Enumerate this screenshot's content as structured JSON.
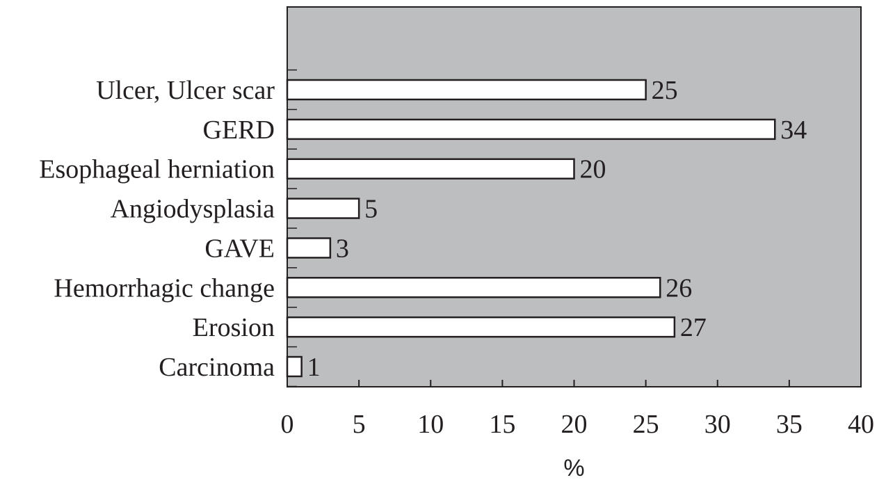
{
  "chart_data": {
    "type": "bar",
    "orientation": "horizontal",
    "categories": [
      "Ulcer, Ulcer scar",
      "GERD",
      "Esophageal herniation",
      "Angiodysplasia",
      "GAVE",
      "Hemorrhagic change",
      "Erosion",
      "Carcinoma"
    ],
    "values": [
      25,
      34,
      20,
      5,
      3,
      26,
      27,
      1
    ],
    "value_labels": [
      "25",
      "34",
      "20",
      "5",
      "3",
      "26",
      "27",
      "1"
    ],
    "xlabel": "%",
    "ylabel": "",
    "xlim": [
      0,
      40
    ],
    "xticks": [
      0,
      5,
      10,
      15,
      20,
      25,
      30,
      35,
      40
    ],
    "xtick_labels": [
      "0",
      "5",
      "10",
      "15",
      "20",
      "25",
      "30",
      "35",
      "40"
    ],
    "grid": false,
    "legend": "none",
    "colors": {
      "plot_background": "#bcbec0",
      "bar_fill": "#ffffff",
      "bar_stroke": "#231f20",
      "axis": "#231f20",
      "text": "#231f20"
    }
  }
}
